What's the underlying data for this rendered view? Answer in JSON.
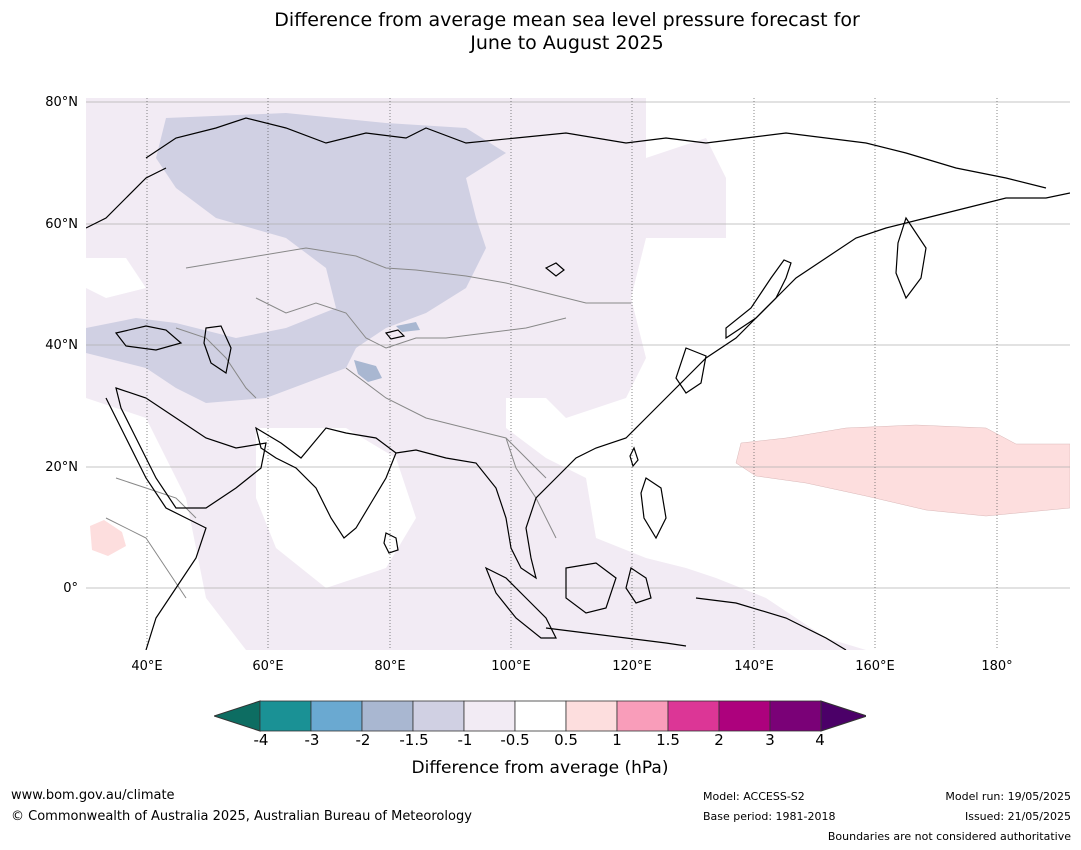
{
  "title": {
    "line1": "Difference from average mean sea level pressure forecast for",
    "line2": "June to August 2025"
  },
  "map": {
    "region": "Asia",
    "lat_labels": [
      "80°N",
      "60°N",
      "40°N",
      "20°N",
      "0°"
    ],
    "lon_labels": [
      "40°E",
      "60°E",
      "80°E",
      "100°E",
      "120°E",
      "140°E",
      "160°E",
      "180°"
    ],
    "colors": {
      "below_1_5": "#a9b7d1",
      "below_1": "#d0d0e3",
      "below_0_5": "#f2ebf4",
      "neutral": "#ffffff",
      "above_0_5": "#fddede",
      "coast": "#000000",
      "borders": "#888888"
    }
  },
  "colorbar": {
    "tick_labels": [
      "-4",
      "-3",
      "-2",
      "-1.5",
      "-1",
      "-0.5",
      "0.5",
      "1",
      "1.5",
      "2",
      "3",
      "4"
    ],
    "colors": [
      "#0d6d62",
      "#1a9195",
      "#6aa9d1",
      "#a9b7d1",
      "#d0d0e3",
      "#f2ebf4",
      "#ffffff",
      "#fddede",
      "#f99dba",
      "#dc3696",
      "#ad017d",
      "#7a0177",
      "#4b0068"
    ],
    "label": "Difference from average (hPa)"
  },
  "footer": {
    "website": "www.bom.gov.au/climate",
    "copyright": "© Commonwealth of Australia 2025, Australian Bureau of Meteorology",
    "model": "Model: ACCESS-S2",
    "base_period": "Base period: 1981-2018",
    "model_run": "Model run: 19/05/2025",
    "issued": "Issued: 21/05/2025",
    "disclaimer": "Boundaries are not considered authoritative"
  }
}
